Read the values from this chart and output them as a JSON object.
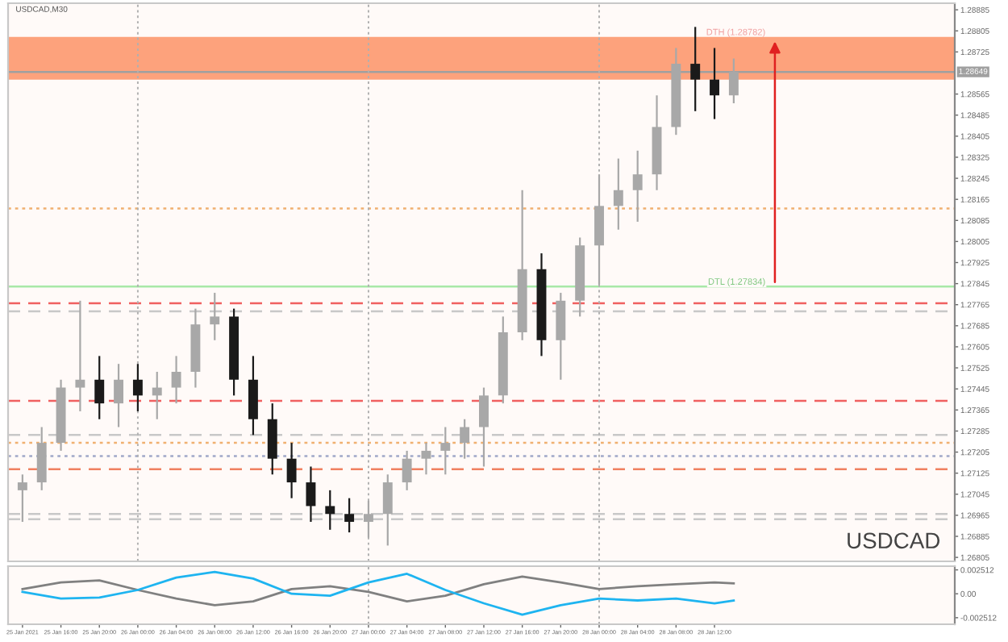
{
  "chart_data": [
    {
      "type": "candlestick",
      "title": "USDCAD,M30",
      "x": [
        "2021-01-25T12:00",
        "2021-01-25T14:00",
        "2021-01-25T16:00",
        "2021-01-25T18:00",
        "2021-01-25T20:00",
        "2021-01-25T22:00",
        "2021-01-26T00:00",
        "2021-01-26T02:00",
        "2021-01-26T04:00",
        "2021-01-26T06:00",
        "2021-01-26T08:00",
        "2021-01-26T10:00",
        "2021-01-26T12:00",
        "2021-01-26T14:00",
        "2021-01-26T16:00",
        "2021-01-26T18:00",
        "2021-01-26T20:00",
        "2021-01-26T22:00",
        "2021-01-27T00:00",
        "2021-01-27T02:00",
        "2021-01-27T04:00",
        "2021-01-27T06:00",
        "2021-01-27T08:00",
        "2021-01-27T10:00",
        "2021-01-27T12:00",
        "2021-01-27T14:00",
        "2021-01-27T16:00",
        "2021-01-27T18:00",
        "2021-01-27T20:00",
        "2021-01-27T22:00",
        "2021-01-28T00:00",
        "2021-01-28T02:00",
        "2021-01-28T04:00",
        "2021-01-28T06:00",
        "2021-01-28T08:00",
        "2021-01-28T10:00",
        "2021-01-28T12:00",
        "2021-01-28T14:00"
      ],
      "ohlc": [
        [
          1.2706,
          1.2712,
          1.2694,
          1.2709
        ],
        [
          1.2709,
          1.273,
          1.2706,
          1.2724
        ],
        [
          1.2724,
          1.2748,
          1.2721,
          1.2745
        ],
        [
          1.2745,
          1.2778,
          1.2736,
          1.2748
        ],
        [
          1.2748,
          1.2757,
          1.2733,
          1.2739
        ],
        [
          1.2739,
          1.2754,
          1.273,
          1.2748
        ],
        [
          1.2748,
          1.2754,
          1.2736,
          1.2742
        ],
        [
          1.2742,
          1.2751,
          1.2733,
          1.2745
        ],
        [
          1.2745,
          1.2757,
          1.2739,
          1.2751
        ],
        [
          1.2751,
          1.2775,
          1.2745,
          1.2769
        ],
        [
          1.2769,
          1.2781,
          1.2763,
          1.2772
        ],
        [
          1.2772,
          1.2775,
          1.2742,
          1.2748
        ],
        [
          1.2748,
          1.2757,
          1.2727,
          1.2733
        ],
        [
          1.2733,
          1.2739,
          1.2712,
          1.2718
        ],
        [
          1.2718,
          1.2724,
          1.2703,
          1.2709
        ],
        [
          1.2709,
          1.2715,
          1.2694,
          1.27
        ],
        [
          1.27,
          1.2706,
          1.2691,
          1.2697
        ],
        [
          1.2697,
          1.2703,
          1.269,
          1.2694
        ],
        [
          1.2694,
          1.2702,
          1.2688,
          1.2697
        ],
        [
          1.2697,
          1.2712,
          1.2685,
          1.2709
        ],
        [
          1.2709,
          1.2721,
          1.2706,
          1.2718
        ],
        [
          1.2718,
          1.2724,
          1.2712,
          1.2721
        ],
        [
          1.2721,
          1.273,
          1.2712,
          1.2724
        ],
        [
          1.2724,
          1.2733,
          1.2718,
          1.273
        ],
        [
          1.273,
          1.2745,
          1.2715,
          1.2742
        ],
        [
          1.2742,
          1.2772,
          1.2739,
          1.2766
        ],
        [
          1.2766,
          1.282,
          1.2763,
          1.279
        ],
        [
          1.279,
          1.2796,
          1.2757,
          1.2763
        ],
        [
          1.2763,
          1.2781,
          1.2748,
          1.2778
        ],
        [
          1.2778,
          1.2802,
          1.2772,
          1.2799
        ],
        [
          1.2799,
          1.2826,
          1.2784,
          1.2814
        ],
        [
          1.2814,
          1.2832,
          1.2805,
          1.282
        ],
        [
          1.282,
          1.2835,
          1.2808,
          1.2826
        ],
        [
          1.2826,
          1.2856,
          1.282,
          1.2844
        ],
        [
          1.2844,
          1.2874,
          1.2841,
          1.2868
        ],
        [
          1.2868,
          1.2882,
          1.285,
          1.2862
        ],
        [
          1.2862,
          1.2874,
          1.2847,
          1.2856
        ],
        [
          1.2856,
          1.287,
          1.2853,
          1.2865
        ]
      ],
      "colors": [
        "#a8a8a8",
        "#a8a8a8",
        "#a8a8a8",
        "#a8a8a8",
        "#1a1a1a",
        "#a8a8a8",
        "#1a1a1a",
        "#a8a8a8",
        "#a8a8a8",
        "#a8a8a8",
        "#a8a8a8",
        "#1a1a1a",
        "#1a1a1a",
        "#1a1a1a",
        "#1a1a1a",
        "#1a1a1a",
        "#1a1a1a",
        "#1a1a1a",
        "#a8a8a8",
        "#a8a8a8",
        "#a8a8a8",
        "#a8a8a8",
        "#a8a8a8",
        "#a8a8a8",
        "#a8a8a8",
        "#a8a8a8",
        "#a8a8a8",
        "#1a1a1a",
        "#a8a8a8",
        "#a8a8a8",
        "#a8a8a8",
        "#a8a8a8",
        "#a8a8a8",
        "#a8a8a8",
        "#a8a8a8",
        "#1a1a1a",
        "#1a1a1a",
        "#a8a8a8"
      ],
      "xlim": [
        "2021-01-25T10:30",
        "2021-01-29T13:00"
      ],
      "ylim": [
        1.2679,
        1.2891
      ],
      "yticks": [
        1.26805,
        1.26885,
        1.26965,
        1.27045,
        1.27125,
        1.27205,
        1.27285,
        1.27365,
        1.27445,
        1.27525,
        1.27605,
        1.27685,
        1.27765,
        1.27845,
        1.27925,
        1.28005,
        1.28085,
        1.28165,
        1.28245,
        1.28325,
        1.28405,
        1.28485,
        1.28565,
        1.28725,
        1.28805,
        1.28885
      ],
      "tick_labels": "y",
      "grid": false,
      "bands": [
        {
          "axis": "y",
          "from": 1.2862,
          "to": 1.28782,
          "label": "DTH (1.28782)",
          "color": "#fda27c"
        }
      ],
      "ref_lines": [
        {
          "axis": "y",
          "value": 1.28649,
          "label": "1.28649",
          "color": "#a0a0a0",
          "line_style": "solid"
        },
        {
          "axis": "y",
          "value": 1.2813,
          "color": "#f0b070",
          "line_style": "dotted"
        },
        {
          "axis": "y",
          "value": 1.27834,
          "label": "DTL (1.27834)",
          "color": "#a8e8a8",
          "line_style": "solid"
        },
        {
          "axis": "y",
          "value": 1.2777,
          "color": "#f06060",
          "line_style": "dashed"
        },
        {
          "axis": "y",
          "value": 1.2774,
          "color": "#c8c8c8",
          "line_style": "dashed"
        },
        {
          "axis": "y",
          "value": 1.274,
          "color": "#f06060",
          "line_style": "dashed"
        },
        {
          "axis": "y",
          "value": 1.2727,
          "color": "#c8c8c8",
          "line_style": "dashed"
        },
        {
          "axis": "y",
          "value": 1.2724,
          "color": "#f0b070",
          "line_style": "dotted"
        },
        {
          "axis": "y",
          "value": 1.2719,
          "color": "#a0a8c8",
          "line_style": "dotted"
        },
        {
          "axis": "y",
          "value": 1.2714,
          "color": "#f08060",
          "line_style": "dashed"
        },
        {
          "axis": "y",
          "value": 1.2697,
          "color": "#c8c8c8",
          "line_style": "dashed"
        },
        {
          "axis": "y",
          "value": 1.2695,
          "color": "#c8c8c8",
          "line_style": "dashed"
        },
        {
          "axis": "x",
          "value": "2021-01-26T00:00",
          "color": "#b0b0b0",
          "line_style": "dotted"
        },
        {
          "axis": "x",
          "value": "2021-01-27T00:00",
          "color": "#b0b0b0",
          "line_style": "dotted"
        },
        {
          "axis": "x",
          "value": "2021-01-28T00:00",
          "color": "#b0b0b0",
          "line_style": "dotted"
        }
      ],
      "annotations": [
        "USDCAD"
      ]
    },
    {
      "type": "line",
      "x": [
        "2021-01-25T12:00",
        "2021-01-25T16:00",
        "2021-01-25T20:00",
        "2021-01-26T00:00",
        "2021-01-26T04:00",
        "2021-01-26T08:00",
        "2021-01-26T12:00",
        "2021-01-26T16:00",
        "2021-01-26T20:00",
        "2021-01-27T00:00",
        "2021-01-27T04:00",
        "2021-01-27T08:00",
        "2021-01-27T12:00",
        "2021-01-27T16:00",
        "2021-01-27T20:00",
        "2021-01-28T00:00",
        "2021-01-28T04:00",
        "2021-01-28T08:00",
        "2021-01-28T12:00",
        "2021-01-28T14:00"
      ],
      "series": [
        {
          "color": "#808080",
          "values": [
            0.0005,
            0.0012,
            0.0014,
            0.0004,
            -0.0005,
            -0.0012,
            -0.0008,
            0.0005,
            0.0008,
            0.0002,
            -0.0008,
            -0.0002,
            0.001,
            0.0018,
            0.0012,
            0.0005,
            0.0008,
            0.001,
            0.0012,
            0.0011
          ]
        },
        {
          "color": "#1eb4f0",
          "values": [
            0.0002,
            -0.0005,
            -0.0004,
            0.0004,
            0.0017,
            0.0023,
            0.0016,
            0.0,
            -0.0002,
            0.0012,
            0.0021,
            0.0004,
            -0.001,
            -0.0022,
            -0.0012,
            -0.0005,
            -0.0007,
            -0.0005,
            -0.001,
            -0.0007
          ]
        }
      ],
      "xlim": [
        "2021-01-25T10:30",
        "2021-01-29T13:00"
      ],
      "xticks": [
        {
          "value": "2021-01-25T12:00",
          "label": "25 Jan 2021"
        },
        {
          "value": "2021-01-25T16:00",
          "label": "25 Jan 16:00"
        },
        {
          "value": "2021-01-25T20:00",
          "label": "25 Jan 20:00"
        },
        {
          "value": "2021-01-26T00:00",
          "label": "26 Jan 00:00"
        },
        {
          "value": "2021-01-26T04:00",
          "label": "26 Jan 04:00"
        },
        {
          "value": "2021-01-26T08:00",
          "label": "26 Jan 08:00"
        },
        {
          "value": "2021-01-26T12:00",
          "label": "26 Jan 12:00"
        },
        {
          "value": "2021-01-26T16:00",
          "label": "26 Jan 16:00"
        },
        {
          "value": "2021-01-26T20:00",
          "label": "26 Jan 20:00"
        },
        {
          "value": "2021-01-27T00:00",
          "label": "27 Jan 00:00"
        },
        {
          "value": "2021-01-27T04:00",
          "label": "27 Jan 04:00"
        },
        {
          "value": "2021-01-27T08:00",
          "label": "27 Jan 08:00"
        },
        {
          "value": "2021-01-27T12:00",
          "label": "27 Jan 12:00"
        },
        {
          "value": "2021-01-27T16:00",
          "label": "27 Jan 16:00"
        },
        {
          "value": "2021-01-27T20:00",
          "label": "27 Jan 20:00"
        },
        {
          "value": "2021-01-28T00:00",
          "label": "28 Jan 00:00"
        },
        {
          "value": "2021-01-28T04:00",
          "label": "28 Jan 04:00"
        },
        {
          "value": "2021-01-28T08:00",
          "label": "28 Jan 08:00"
        },
        {
          "value": "2021-01-28T12:00",
          "label": "28 Jan 12:00"
        }
      ],
      "ylim": [
        -0.0032,
        0.0029
      ],
      "yticks": [
        {
          "value": 0.002512,
          "label": "0.002512"
        },
        {
          "value": 0,
          "label": "0.00"
        },
        {
          "value": -0.002512,
          "label": "-0.002512"
        }
      ],
      "grid": false,
      "ref_lines": [
        {
          "axis": "x",
          "value": "2021-01-27T00:00",
          "color": "#b0b0b0",
          "line_style": "dotted"
        },
        {
          "axis": "x",
          "value": "2021-01-28T00:00",
          "color": "#b0b0b0",
          "line_style": "dotted"
        }
      ]
    }
  ]
}
